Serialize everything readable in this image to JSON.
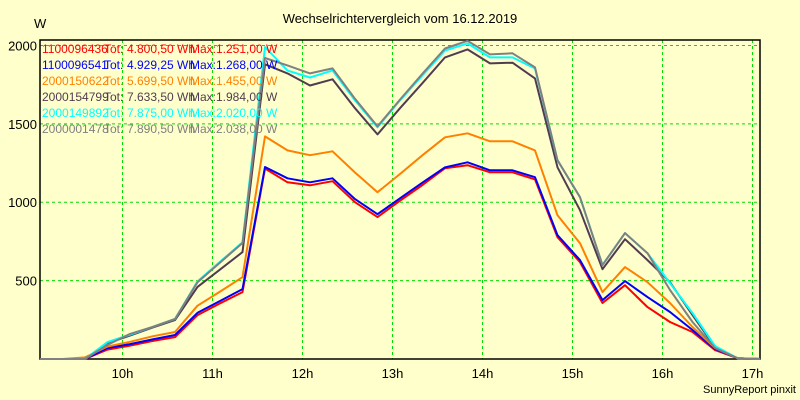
{
  "chart_data": {
    "type": "line",
    "title": "Wechselrichtervergleich vom 16.12.2019",
    "ylabel": "W",
    "xlabel": "",
    "ylim": [
      0,
      2035
    ],
    "xlim_hours": [
      9.0833,
      17.0833
    ],
    "yticks": [
      500,
      1000,
      1500,
      2000
    ],
    "xticks": [
      {
        "h": 10,
        "label": "10h"
      },
      {
        "h": 11,
        "label": "11h"
      },
      {
        "h": 12,
        "label": "12h"
      },
      {
        "h": 13,
        "label": "13h"
      },
      {
        "h": 14,
        "label": "14h"
      },
      {
        "h": 15,
        "label": "15h"
      },
      {
        "h": 16,
        "label": "16h"
      },
      {
        "h": 17,
        "label": "17h"
      }
    ],
    "grid": true,
    "legend_position": "top-left",
    "legend_tot_label": "Tot:",
    "legend_max_label": "Max:",
    "x": [
      "09:05",
      "09:20",
      "09:35",
      "09:50",
      "10:05",
      "10:20",
      "10:35",
      "10:50",
      "11:05",
      "11:20",
      "11:35",
      "11:50",
      "12:05",
      "12:20",
      "12:35",
      "12:50",
      "13:05",
      "13:20",
      "13:35",
      "13:50",
      "14:05",
      "14:20",
      "14:35",
      "14:50",
      "15:05",
      "15:20",
      "15:35",
      "15:50",
      "16:05",
      "16:20",
      "16:35",
      "16:50",
      "17:05"
    ],
    "series": [
      {
        "name": "1100096436",
        "tot": "4.800,50 Wh",
        "max": "1.251,00 W",
        "color": "#ff0000",
        "values": [
          0,
          0,
          0,
          60,
          85,
          115,
          140,
          280,
          355,
          427,
          1215,
          1127,
          1108,
          1134,
          1000,
          905,
          1010,
          1110,
          1217,
          1236,
          1191,
          1191,
          1146,
          777,
          618,
          357,
          471,
          331,
          236,
          172,
          57,
          5,
          0
        ]
      },
      {
        "name": "1100096541",
        "tot": "4.929,25 Wh",
        "max": "1.268,00 W",
        "color": "#0000ff",
        "values": [
          0,
          0,
          0,
          70,
          95,
          125,
          153,
          295,
          370,
          446,
          1225,
          1153,
          1127,
          1153,
          1020,
          924,
          1025,
          1125,
          1223,
          1255,
          1204,
          1204,
          1160,
          790,
          631,
          376,
          497,
          395,
          300,
          185,
          64,
          5,
          0
        ]
      },
      {
        "name": "2000150622",
        "tot": "5.699,50 Wh",
        "max": "1.455,00 W",
        "color": "#ff8000",
        "values": [
          0,
          0,
          10,
          80,
          110,
          145,
          172,
          340,
          430,
          522,
          1420,
          1331,
          1300,
          1325,
          1190,
          1064,
          1180,
          1300,
          1414,
          1440,
          1389,
          1389,
          1331,
          917,
          739,
          427,
          586,
          490,
          357,
          204,
          70,
          5,
          0
        ]
      },
      {
        "name": "2000154799",
        "tot": "7.633,50 Wh",
        "max": "1.984,00 W",
        "color": "#503c50",
        "values": [
          0,
          0,
          0,
          100,
          150,
          200,
          248,
          460,
          570,
          682,
          1880,
          1822,
          1745,
          1784,
          1600,
          1433,
          1600,
          1760,
          1924,
          1975,
          1886,
          1890,
          1790,
          1223,
          949,
          573,
          764,
          631,
          490,
          280,
          76,
          5,
          0
        ]
      },
      {
        "name": "2000149892",
        "tot": "7.875,00 Wh",
        "max": "2.020,00 W",
        "color": "#00ffff",
        "values": [
          0,
          0,
          0,
          108,
          155,
          205,
          255,
          495,
          620,
          745,
          1990,
          1840,
          1796,
          1841,
          1650,
          1478,
          1650,
          1810,
          1968,
          2013,
          1924,
          1924,
          1853,
          1268,
          1032,
          599,
          803,
          675,
          484,
          293,
          83,
          5,
          0
        ]
      },
      {
        "name": "2000001478",
        "tot": "7.890,50 Wh",
        "max": "2.038,00 W",
        "color": "#808080",
        "values": [
          0,
          0,
          0,
          90,
          160,
          205,
          255,
          490,
          615,
          740,
          1920,
          1873,
          1822,
          1854,
          1660,
          1484,
          1655,
          1820,
          1981,
          2030,
          1943,
          1950,
          1860,
          1268,
          1032,
          599,
          803,
          675,
          440,
          236,
          70,
          5,
          0
        ]
      }
    ]
  },
  "footer": {
    "credit": "SunnyReport pinxit"
  }
}
